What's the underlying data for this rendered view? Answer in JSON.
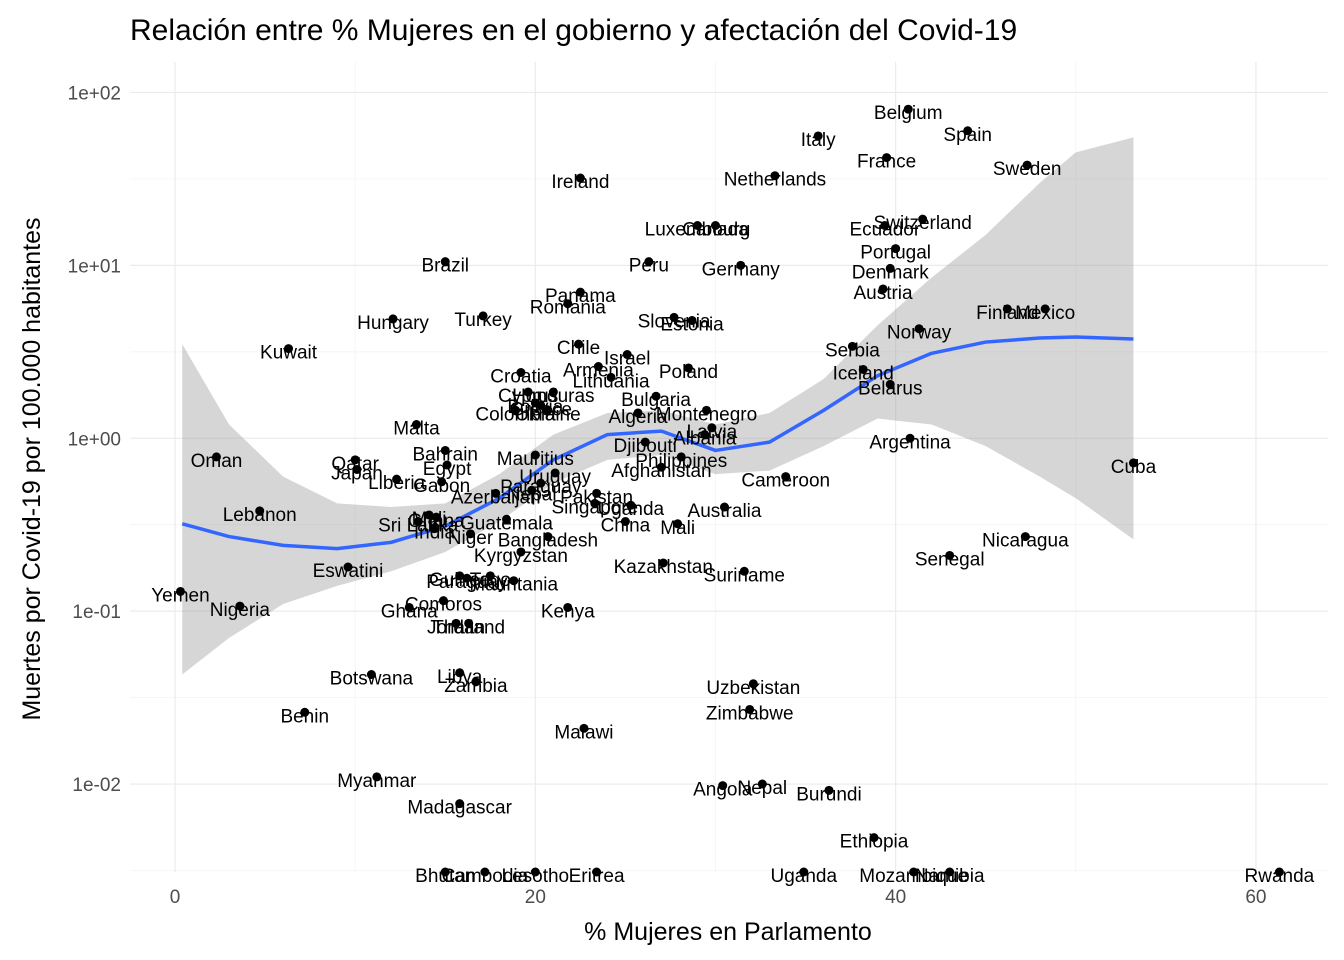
{
  "chart_data": {
    "type": "scatter",
    "title": "Relación entre % Mujeres en el gobierno y afectación del Covid-19",
    "xlabel": "% Mujeres en Parlamento",
    "ylabel": "Muertes por Covid-19 por 100.000 habitantes",
    "xlim": [
      -2.5,
      64
    ],
    "ylim": [
      0.0031,
      150
    ],
    "y_scale": "log10",
    "x_ticks": [
      {
        "v": 0,
        "label": "0"
      },
      {
        "v": 20,
        "label": "20"
      },
      {
        "v": 40,
        "label": "40"
      },
      {
        "v": 60,
        "label": "60"
      }
    ],
    "y_ticks": [
      {
        "v": 0.01,
        "label": "1e-02"
      },
      {
        "v": 0.1,
        "label": "1e-01"
      },
      {
        "v": 1,
        "label": "1e+00"
      },
      {
        "v": 10,
        "label": "1e+01"
      },
      {
        "v": 100,
        "label": "1e+02"
      }
    ],
    "grid": true,
    "point_color": "#000000",
    "smooth_color": "#3366FF",
    "ribbon_color": "#999999",
    "smooth": [
      [
        0.4,
        0.32
      ],
      [
        3,
        0.27
      ],
      [
        6,
        0.24
      ],
      [
        9,
        0.23
      ],
      [
        12,
        0.25
      ],
      [
        15,
        0.31
      ],
      [
        18,
        0.45
      ],
      [
        21,
        0.75
      ],
      [
        24,
        1.05
      ],
      [
        27,
        1.1
      ],
      [
        30,
        0.85
      ],
      [
        33,
        0.95
      ],
      [
        36,
        1.45
      ],
      [
        39,
        2.3
      ],
      [
        42,
        3.1
      ],
      [
        45,
        3.6
      ],
      [
        48,
        3.8
      ],
      [
        50,
        3.85
      ],
      [
        53.2,
        3.75
      ]
    ],
    "ribbon_upper": [
      [
        0.4,
        3.5
      ],
      [
        3,
        1.2
      ],
      [
        6,
        0.6
      ],
      [
        9,
        0.42
      ],
      [
        12,
        0.4
      ],
      [
        15,
        0.42
      ],
      [
        18,
        0.62
      ],
      [
        21,
        1.05
      ],
      [
        24,
        1.4
      ],
      [
        27,
        1.45
      ],
      [
        30,
        1.2
      ],
      [
        33,
        1.4
      ],
      [
        36,
        2.2
      ],
      [
        39,
        4.5
      ],
      [
        42,
        8.5
      ],
      [
        45,
        15
      ],
      [
        48,
        30
      ],
      [
        50,
        45
      ],
      [
        53.2,
        55
      ]
    ],
    "ribbon_lower": [
      [
        0.4,
        0.043
      ],
      [
        3,
        0.07
      ],
      [
        6,
        0.11
      ],
      [
        9,
        0.14
      ],
      [
        12,
        0.17
      ],
      [
        15,
        0.22
      ],
      [
        18,
        0.33
      ],
      [
        21,
        0.55
      ],
      [
        24,
        0.75
      ],
      [
        27,
        0.8
      ],
      [
        30,
        0.62
      ],
      [
        33,
        0.65
      ],
      [
        36,
        0.9
      ],
      [
        39,
        1.3
      ],
      [
        42,
        1.2
      ],
      [
        45,
        0.9
      ],
      [
        48,
        0.6
      ],
      [
        50,
        0.45
      ],
      [
        53.2,
        0.26
      ]
    ],
    "points": [
      {
        "x": 40.7,
        "y": 80,
        "label": "Belgium"
      },
      {
        "x": 44,
        "y": 60,
        "label": "Spain"
      },
      {
        "x": 35.7,
        "y": 56,
        "label": "Italy"
      },
      {
        "x": 39.5,
        "y": 42,
        "label": "France"
      },
      {
        "x": 47.3,
        "y": 38,
        "label": "Sweden"
      },
      {
        "x": 22.5,
        "y": 32,
        "label": "Ireland"
      },
      {
        "x": 33.3,
        "y": 33,
        "label": "Netherlands"
      },
      {
        "x": 41.5,
        "y": 18.5,
        "label": "Switzerland"
      },
      {
        "x": 39.4,
        "y": 17,
        "label": "Ecuador"
      },
      {
        "x": 29,
        "y": 17,
        "label": "Luxembourg"
      },
      {
        "x": 30,
        "y": 17,
        "label": "Canada"
      },
      {
        "x": 40,
        "y": 12.5,
        "label": "Portugal"
      },
      {
        "x": 15,
        "y": 10.5,
        "label": "Brazil"
      },
      {
        "x": 26.3,
        "y": 10.5,
        "label": "Peru"
      },
      {
        "x": 31.4,
        "y": 10,
        "label": "Germany"
      },
      {
        "x": 39.7,
        "y": 9.6,
        "label": "Denmark"
      },
      {
        "x": 39.3,
        "y": 7.3,
        "label": "Austria"
      },
      {
        "x": 22.5,
        "y": 7,
        "label": "Panama"
      },
      {
        "x": 21.8,
        "y": 6,
        "label": "Romania"
      },
      {
        "x": 46.2,
        "y": 5.6,
        "label": "Finland"
      },
      {
        "x": 48.3,
        "y": 5.6,
        "label": "Mexico"
      },
      {
        "x": 17.1,
        "y": 5.1,
        "label": "Turkey"
      },
      {
        "x": 12.1,
        "y": 4.9,
        "label": "Hungary"
      },
      {
        "x": 27.7,
        "y": 5,
        "label": "Slovenia"
      },
      {
        "x": 28.7,
        "y": 4.8,
        "label": "Estonia"
      },
      {
        "x": 41.3,
        "y": 4.3,
        "label": "Norway"
      },
      {
        "x": 6.3,
        "y": 3.3,
        "label": "Kuwait"
      },
      {
        "x": 22.4,
        "y": 3.5,
        "label": "Chile"
      },
      {
        "x": 37.6,
        "y": 3.4,
        "label": "Serbia"
      },
      {
        "x": 25.1,
        "y": 3.05,
        "label": "Israel"
      },
      {
        "x": 23.5,
        "y": 2.6,
        "label": "Armenia"
      },
      {
        "x": 28.5,
        "y": 2.55,
        "label": "Poland"
      },
      {
        "x": 38.2,
        "y": 2.5,
        "label": "Iceland"
      },
      {
        "x": 19.2,
        "y": 2.4,
        "label": "Croatia"
      },
      {
        "x": 24.2,
        "y": 2.25,
        "label": "Lithuania"
      },
      {
        "x": 39.7,
        "y": 2.05,
        "label": "Belarus"
      },
      {
        "x": 19.6,
        "y": 1.85,
        "label": "Cyprus"
      },
      {
        "x": 21,
        "y": 1.85,
        "label": "Honduras"
      },
      {
        "x": 26.7,
        "y": 1.75,
        "label": "Bulgaria"
      },
      {
        "x": 20,
        "y": 1.6,
        "label": "Bolivia"
      },
      {
        "x": 18.9,
        "y": 1.45,
        "label": "Colombia"
      },
      {
        "x": 20.3,
        "y": 1.55,
        "label": "Greece"
      },
      {
        "x": 20.7,
        "y": 1.45,
        "label": "Ukraine"
      },
      {
        "x": 25.7,
        "y": 1.4,
        "label": "Algeria"
      },
      {
        "x": 29.5,
        "y": 1.45,
        "label": "Montenegro"
      },
      {
        "x": 13.4,
        "y": 1.2,
        "label": "Malta"
      },
      {
        "x": 29.8,
        "y": 1.15,
        "label": "Latvia"
      },
      {
        "x": 29.4,
        "y": 1.05,
        "label": "Albania"
      },
      {
        "x": 40.8,
        "y": 1,
        "label": "Argentina"
      },
      {
        "x": 26.1,
        "y": 0.95,
        "label": "Djibouti"
      },
      {
        "x": 15,
        "y": 0.85,
        "label": "Bahrain"
      },
      {
        "x": 20,
        "y": 0.8,
        "label": "Mauritius"
      },
      {
        "x": 28.1,
        "y": 0.78,
        "label": "Philippines"
      },
      {
        "x": 2.3,
        "y": 0.78,
        "label": "Oman"
      },
      {
        "x": 10,
        "y": 0.75,
        "label": "Qatar"
      },
      {
        "x": 15.1,
        "y": 0.7,
        "label": "Egypt"
      },
      {
        "x": 53.2,
        "y": 0.72,
        "label": "Cuba"
      },
      {
        "x": 27,
        "y": 0.68,
        "label": "Afghanistan"
      },
      {
        "x": 10.1,
        "y": 0.66,
        "label": "Japan"
      },
      {
        "x": 21.1,
        "y": 0.63,
        "label": "Uruguay"
      },
      {
        "x": 33.9,
        "y": 0.6,
        "label": "Cameroon"
      },
      {
        "x": 12.3,
        "y": 0.58,
        "label": "Liberia"
      },
      {
        "x": 14.8,
        "y": 0.56,
        "label": "Gabon"
      },
      {
        "x": 20.3,
        "y": 0.55,
        "label": "Paraguay"
      },
      {
        "x": 19.8,
        "y": 0.5,
        "label": "Nepal"
      },
      {
        "x": 17.8,
        "y": 0.48,
        "label": "Azerbaijan"
      },
      {
        "x": 23.4,
        "y": 0.48,
        "label": "Pakistan"
      },
      {
        "x": 23.3,
        "y": 0.42,
        "label": "Singapore"
      },
      {
        "x": 25.3,
        "y": 0.41,
        "label": "Uganda"
      },
      {
        "x": 30.5,
        "y": 0.4,
        "label": "Australia"
      },
      {
        "x": 4.7,
        "y": 0.38,
        "label": "Lebanon"
      },
      {
        "x": 14.1,
        "y": 0.36,
        "label": "Mali"
      },
      {
        "x": 14.5,
        "y": 0.35,
        "label": "Ghana"
      },
      {
        "x": 13.5,
        "y": 0.33,
        "label": "Sri Lanka"
      },
      {
        "x": 18.4,
        "y": 0.34,
        "label": "Guatemala"
      },
      {
        "x": 25,
        "y": 0.33,
        "label": "China"
      },
      {
        "x": 27.9,
        "y": 0.32,
        "label": "Mali"
      },
      {
        "x": 14.4,
        "y": 0.3,
        "label": "India"
      },
      {
        "x": 16.4,
        "y": 0.28,
        "label": "Niger"
      },
      {
        "x": 20.7,
        "y": 0.27,
        "label": "Bangladesh"
      },
      {
        "x": 47.2,
        "y": 0.27,
        "label": "Nicaragua"
      },
      {
        "x": 19.2,
        "y": 0.22,
        "label": "Kyrgyzstan"
      },
      {
        "x": 43,
        "y": 0.21,
        "label": "Senegal"
      },
      {
        "x": 27.1,
        "y": 0.19,
        "label": "Kazakhstan"
      },
      {
        "x": 9.6,
        "y": 0.18,
        "label": "Eswatini"
      },
      {
        "x": 31.6,
        "y": 0.17,
        "label": "Suriname"
      },
      {
        "x": 15.8,
        "y": 0.16,
        "label": "Guinea"
      },
      {
        "x": 17.5,
        "y": 0.16,
        "label": "Togo"
      },
      {
        "x": 16.2,
        "y": 0.155,
        "label": "Paraguay"
      },
      {
        "x": 18.8,
        "y": 0.15,
        "label": "Mauritania"
      },
      {
        "x": 0.3,
        "y": 0.13,
        "label": "Yemen"
      },
      {
        "x": 3.6,
        "y": 0.107,
        "label": "Nigeria"
      },
      {
        "x": 14.9,
        "y": 0.115,
        "label": "Comoros"
      },
      {
        "x": 13,
        "y": 0.105,
        "label": "Ghana"
      },
      {
        "x": 21.8,
        "y": 0.105,
        "label": "Kenya"
      },
      {
        "x": 15.6,
        "y": 0.085,
        "label": "Jordan"
      },
      {
        "x": 16.3,
        "y": 0.085,
        "label": "Thailand"
      },
      {
        "x": 10.9,
        "y": 0.043,
        "label": "Botswana"
      },
      {
        "x": 15.8,
        "y": 0.044,
        "label": "Libya"
      },
      {
        "x": 16.7,
        "y": 0.039,
        "label": "Zambia"
      },
      {
        "x": 32.1,
        "y": 0.038,
        "label": "Uzbekistan"
      },
      {
        "x": 31.9,
        "y": 0.027,
        "label": "Zimbabwe"
      },
      {
        "x": 7.2,
        "y": 0.026,
        "label": "Benin"
      },
      {
        "x": 22.7,
        "y": 0.021,
        "label": "Malawi"
      },
      {
        "x": 11.2,
        "y": 0.011,
        "label": "Myanmar"
      },
      {
        "x": 30.4,
        "y": 0.0098,
        "label": "Angola"
      },
      {
        "x": 32.6,
        "y": 0.01,
        "label": "Nepal"
      },
      {
        "x": 36.3,
        "y": 0.0092,
        "label": "Burundi"
      },
      {
        "x": 15.8,
        "y": 0.0077,
        "label": "Madagascar"
      },
      {
        "x": 38.8,
        "y": 0.0049,
        "label": "Ethiopia"
      },
      {
        "x": 15,
        "y": 0.0031,
        "label": "Bhutan"
      },
      {
        "x": 17.2,
        "y": 0.0031,
        "label": "Cambodia"
      },
      {
        "x": 20,
        "y": 0.0031,
        "label": "Lesotho"
      },
      {
        "x": 23.4,
        "y": 0.0031,
        "label": "Eritrea"
      },
      {
        "x": 34.9,
        "y": 0.0031,
        "label": "Uganda"
      },
      {
        "x": 41,
        "y": 0.0031,
        "label": "Mozambique"
      },
      {
        "x": 43,
        "y": 0.0031,
        "label": "Namibia"
      },
      {
        "x": 61.3,
        "y": 0.0031,
        "label": "Rwanda"
      }
    ]
  }
}
